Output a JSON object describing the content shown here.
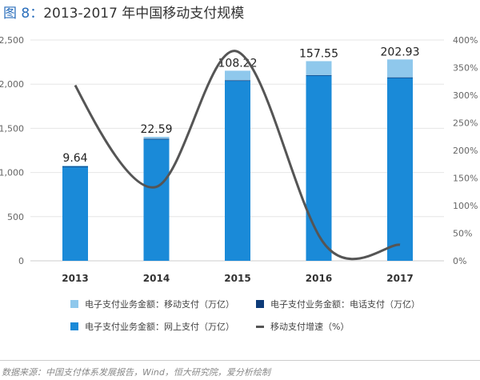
{
  "title": {
    "figure": "图 8：",
    "text": "2013-2017 年中国移动支付规模"
  },
  "chart_data": {
    "type": "bar",
    "stacked": true,
    "title": "2013-2017 年中国移动支付规模",
    "categories": [
      "2013",
      "2014",
      "2015",
      "2016",
      "2017"
    ],
    "series": [
      {
        "name": "电子支付业务金额：网上支付（万亿）",
        "axis": "left",
        "color": "#1a8ad8",
        "values": [
          1065,
          1376,
          2040,
          2100,
          2075
        ]
      },
      {
        "name": "电子支付业务金额：电话支付（万亿）",
        "axis": "left",
        "color": "#0d3b78",
        "values": [
          4,
          5,
          4,
          3,
          2
        ]
      },
      {
        "name": "电子支付业务金额：移动支付（万亿）",
        "axis": "left",
        "color": "#8fc8ec",
        "values": [
          9.64,
          22.59,
          108.22,
          157.55,
          202.93
        ],
        "data_labels": [
          "9.64",
          "22.59",
          "108.22",
          "157.55",
          "202.93"
        ]
      },
      {
        "name": "移动支付增速（%）",
        "type": "line",
        "axis": "right",
        "color": "#555555",
        "values": [
          318,
          134,
          379,
          46,
          29
        ]
      }
    ],
    "y_left": {
      "min": 0,
      "max": 2500,
      "ticks": [
        "0",
        "500",
        "1,000",
        "1,500",
        "2,000",
        "2,500"
      ]
    },
    "y_right": {
      "min": 0,
      "max": 400,
      "ticks": [
        "0%",
        "50%",
        "100%",
        "150%",
        "200%",
        "250%",
        "300%",
        "350%",
        "400%"
      ]
    },
    "grid": true,
    "legend_position": "bottom"
  },
  "source": "数据来源：中国支付体系发展报告，Wind，恒大研究院，爱分析绘制"
}
